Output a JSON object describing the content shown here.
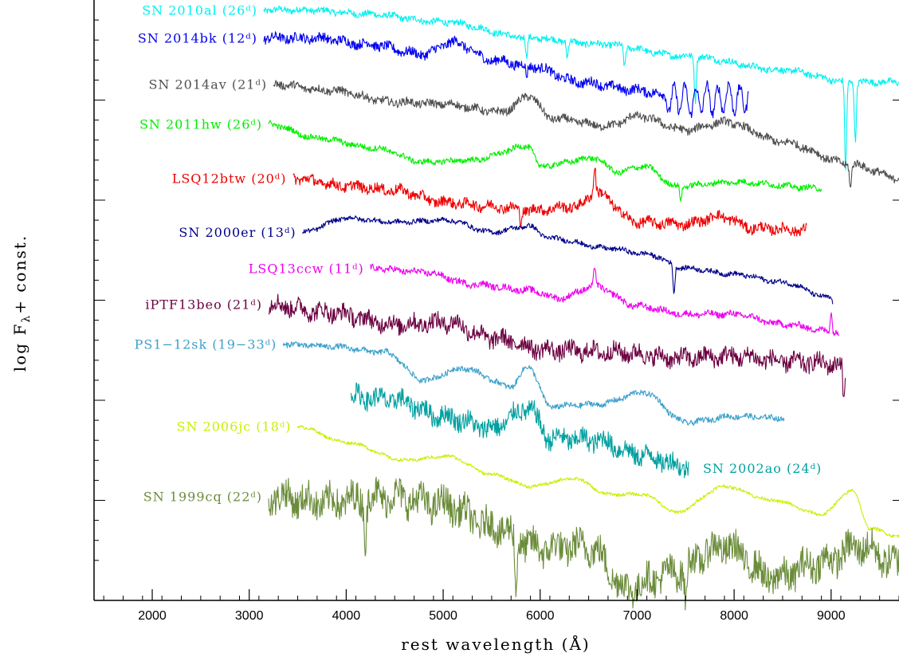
{
  "chart_data": {
    "type": "line",
    "title": "",
    "xlabel": "rest wavelength (Å)",
    "ylabel": "log F",
    "ylabel_subscript": "λ",
    "ylabel_suffix": "+ const.",
    "xlim": [
      1400,
      9700
    ],
    "ylim": [
      0,
      15
    ],
    "x_ticks": [
      2000,
      3000,
      4000,
      5000,
      6000,
      7000,
      8000,
      9000
    ],
    "x_tick_labels": [
      "2000",
      "3000",
      "4000",
      "5000",
      "6000",
      "7000",
      "8000",
      "9000"
    ],
    "y_tick_labels": "none",
    "grid": false,
    "series": [
      {
        "name": "SN 2010al (26ᵈ)",
        "color": "#00f0f0",
        "label_pos": "left",
        "x_start": 3150,
        "x_end": 9700,
        "noise": 0.08,
        "points": [
          [
            3150,
            14.75
          ],
          [
            3600,
            14.75
          ],
          [
            4200,
            14.65
          ],
          [
            5000,
            14.45
          ],
          [
            5900,
            14.05
          ],
          [
            6600,
            13.9
          ],
          [
            7500,
            13.6
          ],
          [
            8500,
            13.25
          ],
          [
            9200,
            12.95
          ],
          [
            9700,
            12.95
          ]
        ],
        "dips": [
          [
            5860,
            0.5
          ],
          [
            6280,
            0.4
          ],
          [
            6870,
            0.5
          ],
          [
            7600,
            1.1
          ],
          [
            9150,
            2.2
          ],
          [
            9250,
            1.5
          ]
        ]
      },
      {
        "name": "SN 2014bk (12ᵈ)",
        "color": "#0000ee",
        "label_pos": "left",
        "x_start": 3150,
        "x_end": 8150,
        "noise": 0.12,
        "points": [
          [
            3150,
            14.05
          ],
          [
            3700,
            14.05
          ],
          [
            4200,
            13.9
          ],
          [
            4800,
            13.65
          ],
          [
            5100,
            13.95
          ],
          [
            5500,
            13.5
          ],
          [
            5900,
            13.35
          ],
          [
            6400,
            12.95
          ],
          [
            7000,
            12.75
          ],
          [
            7500,
            12.5
          ],
          [
            8150,
            12.55
          ]
        ],
        "dips": [
          [
            5860,
            0.3
          ]
        ],
        "osc": [
          7300,
          8150,
          0.35
        ]
      },
      {
        "name": "SN 2014av (21ᵈ)",
        "color": "#505050",
        "label_pos": "left",
        "x_start": 3250,
        "x_end": 9700,
        "noise": 0.1,
        "points": [
          [
            3250,
            12.9
          ],
          [
            3800,
            12.75
          ],
          [
            4500,
            12.45
          ],
          [
            5000,
            12.4
          ],
          [
            5600,
            12.2
          ],
          [
            5900,
            12.6
          ],
          [
            6100,
            12.05
          ],
          [
            6700,
            11.85
          ],
          [
            7000,
            12.1
          ],
          [
            7500,
            11.75
          ],
          [
            7900,
            11.95
          ],
          [
            8500,
            11.45
          ],
          [
            9200,
            10.9
          ],
          [
            9700,
            10.55
          ]
        ],
        "dips": [
          [
            9200,
            0.6
          ]
        ]
      },
      {
        "name": "SN 2011hw (26ᵈ)",
        "color": "#00ee00",
        "label_pos": "left",
        "x_start": 3200,
        "x_end": 8900,
        "noise": 0.07,
        "points": [
          [
            3200,
            11.9
          ],
          [
            3700,
            11.55
          ],
          [
            4300,
            11.3
          ],
          [
            4800,
            10.95
          ],
          [
            5300,
            11.0
          ],
          [
            5880,
            11.35
          ],
          [
            6000,
            10.85
          ],
          [
            6560,
            11.05
          ],
          [
            6800,
            10.7
          ],
          [
            7070,
            10.85
          ],
          [
            7400,
            10.35
          ],
          [
            8000,
            10.45
          ],
          [
            8900,
            10.3
          ]
        ],
        "dips": [
          [
            7450,
            0.35
          ]
        ]
      },
      {
        "name": "LSQ12btw (20ᵈ)",
        "color": "#ee0000",
        "label_pos": "left",
        "x_start": 3450,
        "x_end": 8750,
        "noise": 0.13,
        "points": [
          [
            3450,
            10.55
          ],
          [
            4000,
            10.35
          ],
          [
            4500,
            10.25
          ],
          [
            5000,
            9.95
          ],
          [
            5500,
            9.85
          ],
          [
            5900,
            9.75
          ],
          [
            6400,
            9.85
          ],
          [
            6563,
            10.2
          ],
          [
            7000,
            9.45
          ],
          [
            7500,
            9.4
          ],
          [
            7850,
            9.6
          ],
          [
            8200,
            9.3
          ],
          [
            8750,
            9.25
          ]
        ],
        "dips": [
          [
            5800,
            0.3
          ],
          [
            6563,
            -0.7
          ]
        ]
      },
      {
        "name": "SN 2000er (13ᵈ)",
        "color": "#00008b",
        "label_pos": "left",
        "x_start": 3550,
        "x_end": 9020,
        "noise": 0.06,
        "points": [
          [
            3550,
            9.2
          ],
          [
            4000,
            9.55
          ],
          [
            4500,
            9.45
          ],
          [
            5050,
            9.5
          ],
          [
            5500,
            9.2
          ],
          [
            5880,
            9.35
          ],
          [
            6100,
            9.05
          ],
          [
            6700,
            8.8
          ],
          [
            7100,
            8.65
          ],
          [
            7500,
            8.3
          ],
          [
            8000,
            8.15
          ],
          [
            8500,
            7.95
          ],
          [
            9000,
            7.55
          ],
          [
            9020,
            7.45
          ]
        ],
        "dips": [
          [
            7380,
            0.7
          ]
        ]
      },
      {
        "name": "LSQ13ccw (11ᵈ)",
        "color": "#ee00ee",
        "label_pos": "left",
        "x_start": 4250,
        "x_end": 9080,
        "noise": 0.08,
        "points": [
          [
            4250,
            8.3
          ],
          [
            4800,
            8.2
          ],
          [
            5300,
            7.9
          ],
          [
            5880,
            7.75
          ],
          [
            6200,
            7.55
          ],
          [
            6563,
            7.85
          ],
          [
            7000,
            7.35
          ],
          [
            7500,
            7.15
          ],
          [
            8000,
            7.15
          ],
          [
            8500,
            6.9
          ],
          [
            9080,
            6.7
          ]
        ],
        "dips": [
          [
            6563,
            -0.5
          ],
          [
            9000,
            -0.5
          ]
        ]
      },
      {
        "name": "iPTF13beo (21ᵈ)",
        "color": "#6b0040",
        "label_pos": "left",
        "x_start": 3200,
        "x_end": 9150,
        "noise": 0.22,
        "points": [
          [
            3200,
            7.4
          ],
          [
            3800,
            7.2
          ],
          [
            4500,
            6.9
          ],
          [
            5050,
            6.95
          ],
          [
            5500,
            6.55
          ],
          [
            6100,
            6.25
          ],
          [
            6800,
            6.2
          ],
          [
            7400,
            6.05
          ],
          [
            8000,
            6.1
          ],
          [
            8600,
            5.95
          ],
          [
            9150,
            5.9
          ]
        ],
        "dips": [
          [
            9130,
            1.0
          ]
        ]
      },
      {
        "name": "PS1−12sk (19−33ᵈ)",
        "color": "#3ba0cc",
        "label_pos": "left",
        "x_start": 3350,
        "x_end": 8520,
        "noise": 0.07,
        "points": [
          [
            3350,
            6.4
          ],
          [
            3800,
            6.35
          ],
          [
            4400,
            6.2
          ],
          [
            4800,
            5.5
          ],
          [
            5200,
            5.8
          ],
          [
            5700,
            5.35
          ],
          [
            5880,
            5.85
          ],
          [
            6100,
            4.85
          ],
          [
            6600,
            4.9
          ],
          [
            7070,
            5.2
          ],
          [
            7500,
            4.45
          ],
          [
            8000,
            4.6
          ],
          [
            8520,
            4.55
          ]
        ],
        "dips": []
      },
      {
        "name": "SN 2006jc (18ᵈ)",
        "color": "#ccee00",
        "label_pos": "left",
        "x_start": 3500,
        "x_end": 9700,
        "noise": 0.04,
        "points": [
          [
            3500,
            4.35
          ],
          [
            4000,
            3.95
          ],
          [
            4600,
            3.5
          ],
          [
            5050,
            3.6
          ],
          [
            5500,
            3.15
          ],
          [
            5900,
            2.85
          ],
          [
            6350,
            3.05
          ],
          [
            6700,
            2.65
          ],
          [
            7070,
            2.65
          ],
          [
            7400,
            2.2
          ],
          [
            7900,
            2.85
          ],
          [
            8400,
            2.5
          ],
          [
            8900,
            2.15
          ],
          [
            9220,
            2.75
          ],
          [
            9400,
            1.8
          ],
          [
            9700,
            1.6
          ]
        ],
        "dips": []
      },
      {
        "name": "SN 2002ao (24ᵈ)",
        "color": "#00a0a0",
        "label_pos": "right",
        "x_start": 4050,
        "x_end": 7530,
        "noise": 0.25,
        "points": [
          [
            4050,
            5.1
          ],
          [
            4500,
            5.0
          ],
          [
            5000,
            4.6
          ],
          [
            5500,
            4.3
          ],
          [
            5880,
            4.8
          ],
          [
            6100,
            4.05
          ],
          [
            6600,
            4.0
          ],
          [
            7000,
            3.65
          ],
          [
            7530,
            3.35
          ]
        ],
        "dips": []
      },
      {
        "name": "SN 1999cq (22ᵈ)",
        "color": "#6b8c3a",
        "label_pos": "left",
        "x_start": 3200,
        "x_end": 9700,
        "noise": 0.4,
        "points": [
          [
            3200,
            2.6
          ],
          [
            3800,
            2.45
          ],
          [
            4400,
            2.6
          ],
          [
            5000,
            2.4
          ],
          [
            5500,
            1.85
          ],
          [
            6000,
            1.3
          ],
          [
            6500,
            1.35
          ],
          [
            6900,
            0.3
          ],
          [
            7300,
            0.65
          ],
          [
            7900,
            1.35
          ],
          [
            8400,
            0.55
          ],
          [
            8900,
            0.95
          ],
          [
            9300,
            1.35
          ],
          [
            9700,
            0.9
          ]
        ],
        "dips": [
          [
            4200,
            1.2
          ],
          [
            5750,
            1.5
          ],
          [
            7500,
            1.0
          ]
        ]
      }
    ]
  }
}
